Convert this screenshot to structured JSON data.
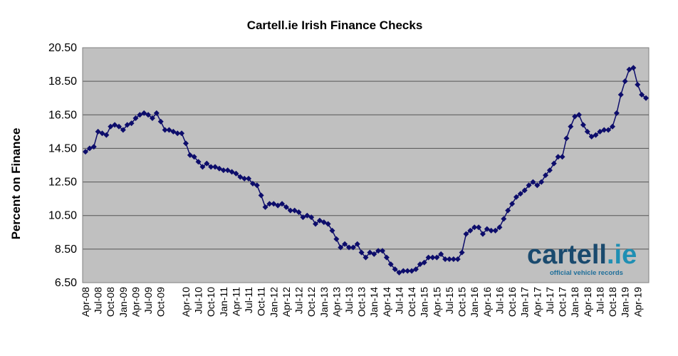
{
  "colors": {
    "plot_background": "#c0c0c0",
    "gridline": "#555555",
    "series": "#0d0d6b",
    "logo_text": "#1a4a6e",
    "logo_accent": "#1f8fb3",
    "logo_tagline": "#1f6f9a"
  },
  "logo": {
    "name": "cartell.ie",
    "tagline": "official vehicle records"
  },
  "chart_data": {
    "type": "line",
    "title": "Cartell.ie  Irish  Finance  Checks",
    "xlabel": "",
    "ylabel": "Percent on Finance",
    "ylim": [
      6.5,
      20.5
    ],
    "yticks": [
      "6.50",
      "8.50",
      "10.50",
      "12.50",
      "14.50",
      "16.50",
      "18.50",
      "20.50"
    ],
    "grid": true,
    "legend": "none",
    "marker": "diamond",
    "x_start": "2008-04",
    "x_end": "2019-06",
    "xtick_labels": [
      "Apr-08",
      "Jul-08",
      "Oct-08",
      "Jan-09",
      "Apr-09",
      "Jul-09",
      "Oct-09",
      "Apr-10",
      "Jul-10",
      "Oct-10",
      "Jan-11",
      "Apr-11",
      "Jul-11",
      "Oct-11",
      "Jan-12",
      "Apr-12",
      "Jul-12",
      "Oct-12",
      "Jan-13",
      "Apr-13",
      "Jul-13",
      "Oct-13",
      "Jan-14",
      "Apr-14",
      "Jul-14",
      "Oct-14",
      "Jan-15",
      "Apr-15",
      "Jul-15",
      "Oct-15",
      "Jan-16",
      "Apr-16",
      "Jul-16",
      "Oct-16",
      "Jan-17",
      "Apr-17",
      "Jul-17",
      "Oct-17",
      "Jan-18",
      "Apr-18",
      "Jul-18",
      "Oct-18",
      "Jan-19",
      "Apr-19"
    ],
    "series": [
      {
        "values": [
          14.3,
          14.5,
          14.6,
          15.5,
          15.4,
          15.3,
          15.8,
          15.9,
          15.8,
          15.6,
          15.9,
          16.0,
          16.3,
          16.5,
          16.6,
          16.5,
          16.3,
          16.6,
          16.1,
          15.6,
          15.6,
          15.5,
          15.4,
          15.4,
          14.8,
          14.1,
          14.0,
          13.7,
          13.4,
          13.6,
          13.4,
          13.4,
          13.3,
          13.2,
          13.2,
          13.1,
          13.0,
          12.8,
          12.7,
          12.7,
          12.4,
          12.3,
          11.7,
          11.0,
          11.2,
          11.2,
          11.1,
          11.2,
          11.0,
          10.8,
          10.8,
          10.7,
          10.4,
          10.5,
          10.4,
          10.0,
          10.2,
          10.1,
          10.0,
          9.6,
          9.1,
          8.6,
          8.8,
          8.6,
          8.6,
          8.8,
          8.3,
          8.0,
          8.3,
          8.2,
          8.4,
          8.4,
          8.0,
          7.6,
          7.3,
          7.1,
          7.2,
          7.2,
          7.2,
          7.3,
          7.6,
          7.7,
          8.0,
          8.0,
          8.0,
          8.2,
          7.9,
          7.9,
          7.9,
          7.9,
          8.3,
          9.4,
          9.6,
          9.8,
          9.8,
          9.4,
          9.7,
          9.6,
          9.6,
          9.8,
          10.3,
          10.8,
          11.2,
          11.6,
          11.8,
          12.0,
          12.3,
          12.5,
          12.3,
          12.5,
          12.9,
          13.2,
          13.6,
          14.0,
          14.0,
          15.1,
          15.8,
          16.4,
          16.5,
          15.9,
          15.5,
          15.2,
          15.3,
          15.5,
          15.6,
          15.6,
          15.8,
          16.6,
          17.7,
          18.5,
          19.2,
          19.3,
          18.3,
          17.7,
          17.5
        ]
      }
    ]
  }
}
